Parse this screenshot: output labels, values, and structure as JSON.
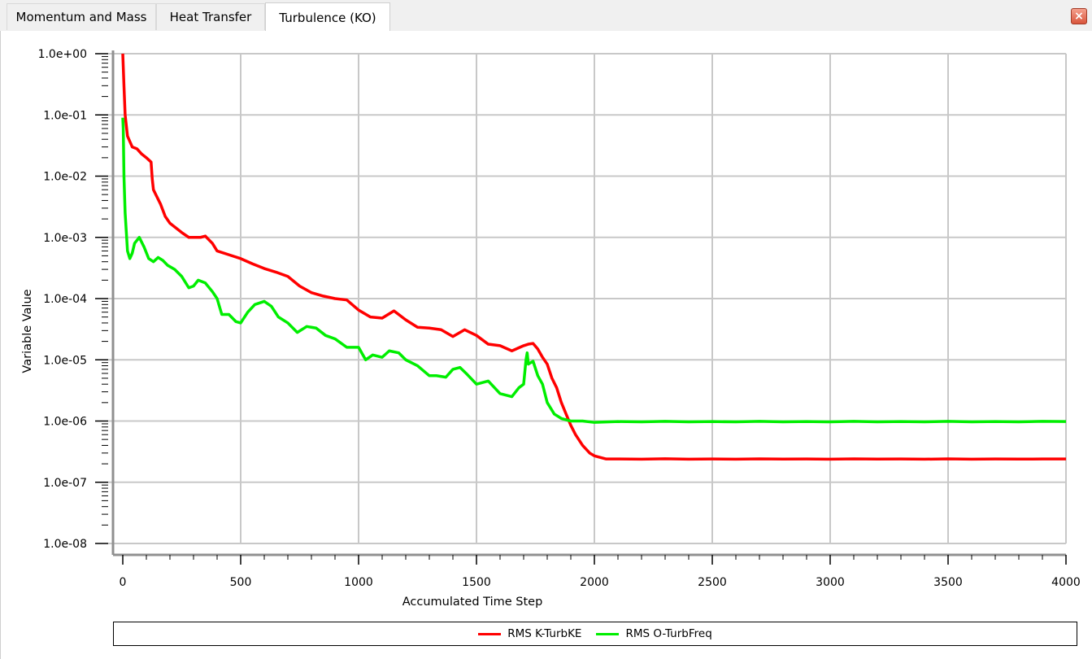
{
  "tabs": [
    {
      "label": "Momentum and Mass",
      "active": false
    },
    {
      "label": "Heat Transfer",
      "active": false
    },
    {
      "label": "Turbulence (KO)",
      "active": true
    }
  ],
  "close_label": "×",
  "chart_data": {
    "type": "line",
    "xlabel": "Accumulated Time Step",
    "ylabel": "Variable Value",
    "xlim": [
      0,
      4000
    ],
    "ylim": [
      1e-08,
      1
    ],
    "yscale": "log",
    "grid": true,
    "legend_placement": "bottom",
    "x_ticks": [
      0,
      500,
      1000,
      1500,
      2000,
      2500,
      3000,
      3500,
      4000
    ],
    "x_tick_labels": [
      "0",
      "500",
      "1000",
      "1500",
      "2000",
      "2500",
      "3000",
      "3500",
      "4000"
    ],
    "y_ticks": [
      1,
      0.1,
      0.01,
      0.001,
      0.0001,
      1e-05,
      1e-06,
      1e-07,
      1e-08
    ],
    "y_tick_labels": [
      "1.0e+00",
      "1.0e-01",
      "1.0e-02",
      "1.0e-03",
      "1.0e-04",
      "1.0e-05",
      "1.0e-06",
      "1.0e-07",
      "1.0e-08"
    ],
    "series": [
      {
        "name": "RMS K-TurbKE",
        "color": "#ff0000",
        "x": [
          0,
          5,
          10,
          20,
          40,
          60,
          80,
          100,
          120,
          125,
          130,
          140,
          160,
          180,
          200,
          250,
          280,
          300,
          330,
          350,
          380,
          400,
          450,
          500,
          550,
          600,
          650,
          700,
          750,
          800,
          850,
          900,
          950,
          1000,
          1050,
          1100,
          1150,
          1200,
          1250,
          1300,
          1350,
          1400,
          1450,
          1500,
          1550,
          1600,
          1650,
          1700,
          1720,
          1740,
          1760,
          1780,
          1800,
          1820,
          1840,
          1860,
          1880,
          1900,
          1920,
          1950,
          1980,
          2000,
          2050,
          2100,
          2200,
          2300,
          2400,
          2500,
          2600,
          2700,
          2800,
          2900,
          3000,
          3100,
          3200,
          3300,
          3400,
          3500,
          3600,
          3700,
          3800,
          3900,
          4000
        ],
        "y": [
          1.0,
          0.3,
          0.1,
          0.045,
          0.03,
          0.028,
          0.023,
          0.02,
          0.017,
          0.009,
          0.006,
          0.005,
          0.0035,
          0.0022,
          0.0017,
          0.0012,
          0.001,
          0.001,
          0.001,
          0.00105,
          0.0008,
          0.0006,
          0.00052,
          0.00045,
          0.00037,
          0.00031,
          0.00027,
          0.00023,
          0.00016,
          0.000125,
          0.00011,
          0.0001,
          9.5e-05,
          6.5e-05,
          5e-05,
          4.8e-05,
          6.3e-05,
          4.5e-05,
          3.4e-05,
          3.3e-05,
          3.1e-05,
          2.4e-05,
          3.1e-05,
          2.5e-05,
          1.8e-05,
          1.7e-05,
          1.4e-05,
          1.7e-05,
          1.8e-05,
          1.85e-05,
          1.5e-05,
          1.1e-05,
          8.5e-06,
          5e-06,
          3.5e-06,
          2e-06,
          1.3e-06,
          8.5e-07,
          6e-07,
          4e-07,
          3e-07,
          2.7e-07,
          2.4e-07,
          2.4e-07,
          2.38e-07,
          2.42e-07,
          2.38e-07,
          2.4e-07,
          2.38e-07,
          2.41e-07,
          2.39e-07,
          2.4e-07,
          2.38e-07,
          2.41e-07,
          2.39e-07,
          2.4e-07,
          2.38e-07,
          2.41e-07,
          2.38e-07,
          2.4e-07,
          2.39e-07,
          2.4e-07,
          2.4e-07
        ]
      },
      {
        "name": "RMS O-TurbFreq",
        "color": "#00ee00",
        "x": [
          0,
          2,
          5,
          10,
          20,
          30,
          40,
          50,
          70,
          90,
          110,
          130,
          150,
          170,
          190,
          220,
          250,
          280,
          300,
          320,
          350,
          380,
          400,
          420,
          450,
          480,
          500,
          530,
          560,
          600,
          630,
          660,
          700,
          740,
          780,
          820,
          860,
          900,
          950,
          1000,
          1030,
          1060,
          1100,
          1130,
          1170,
          1200,
          1250,
          1300,
          1330,
          1370,
          1400,
          1430,
          1460,
          1500,
          1550,
          1600,
          1650,
          1680,
          1700,
          1710,
          1715,
          1720,
          1740,
          1760,
          1780,
          1800,
          1830,
          1860,
          1900,
          1950,
          2000,
          2100,
          2200,
          2300,
          2400,
          2500,
          2600,
          2700,
          2800,
          2900,
          3000,
          3100,
          3200,
          3300,
          3400,
          3500,
          3600,
          3700,
          3800,
          3900,
          4000
        ],
        "y": [
          0.09,
          0.06,
          0.01,
          0.0025,
          0.0006,
          0.00045,
          0.00055,
          0.0008,
          0.001,
          0.0007,
          0.00045,
          0.0004,
          0.00047,
          0.00042,
          0.00035,
          0.0003,
          0.00023,
          0.00015,
          0.00016,
          0.0002,
          0.00018,
          0.00013,
          0.0001,
          5.5e-05,
          5.5e-05,
          4.2e-05,
          4e-05,
          6e-05,
          8e-05,
          9e-05,
          7.5e-05,
          5e-05,
          4e-05,
          2.8e-05,
          3.5e-05,
          3.3e-05,
          2.5e-05,
          2.2e-05,
          1.6e-05,
          1.6e-05,
          1e-05,
          1.2e-05,
          1.1e-05,
          1.4e-05,
          1.3e-05,
          1e-05,
          8e-06,
          5.5e-06,
          5.5e-06,
          5.2e-06,
          7e-06,
          7.5e-06,
          5.8e-06,
          4e-06,
          4.5e-06,
          2.8e-06,
          2.5e-06,
          3.5e-06,
          4e-06,
          1e-05,
          1.3e-05,
          8.5e-06,
          9.5e-06,
          5.5e-06,
          4e-06,
          2e-06,
          1.3e-06,
          1.1e-06,
          1e-06,
          1e-06,
          9.5e-07,
          9.8e-07,
          9.7e-07,
          9.9e-07,
          9.7e-07,
          9.8e-07,
          9.7e-07,
          9.9e-07,
          9.7e-07,
          9.8e-07,
          9.7e-07,
          9.9e-07,
          9.7e-07,
          9.8e-07,
          9.7e-07,
          9.9e-07,
          9.7e-07,
          9.8e-07,
          9.7e-07,
          9.9e-07,
          9.8e-07
        ]
      }
    ]
  }
}
